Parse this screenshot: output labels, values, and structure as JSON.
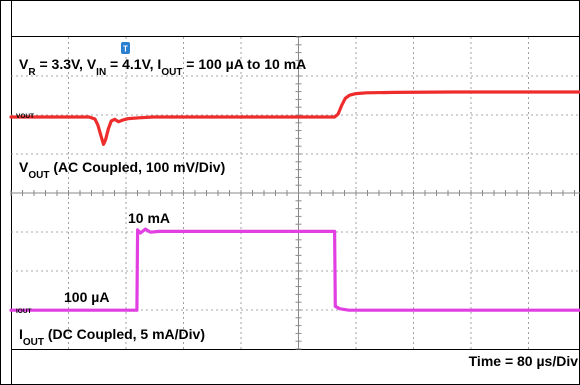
{
  "chart_data": {
    "type": "line",
    "header": {
      "text": "V_R = 3.3V, V_IN = 4.1V, I_OUT = 100 µA to 10 mA",
      "parts": [
        {
          "t": "V"
        },
        {
          "t": "R",
          "sub": true
        },
        {
          "t": " = 3.3V, V"
        },
        {
          "t": "IN",
          "sub": true
        },
        {
          "t": " = 4.1V, I"
        },
        {
          "t": "OUT",
          "sub": true
        },
        {
          "t": " = 100 µA to 10 mA"
        }
      ]
    },
    "vout_caption": {
      "text": "V_OUT (AC Coupled, 100 mV/Div)",
      "parts": [
        {
          "t": "V"
        },
        {
          "t": "OUT",
          "sub": true
        },
        {
          "t": " (AC Coupled, 100 mV/Div)"
        }
      ]
    },
    "iout_caption": {
      "text": "I_OUT (DC Coupled, 5 mA/Div)",
      "parts": [
        {
          "t": "I"
        },
        {
          "t": "OUT",
          "sub": true
        },
        {
          "t": " (DC Coupled, 5 mA/Div)"
        }
      ]
    },
    "vout_marker": "VOUT",
    "iout_marker": "IOUT",
    "time_label": "Time = 80 µs/Div",
    "iout_high_label": "10 mA",
    "iout_low_label": "100 µA",
    "colors": {
      "vout": "#ee2c2c",
      "iout": "#e23fe2",
      "grid": "#8a8a8a",
      "frame": "#000000",
      "trigger": "#2a7fd0"
    },
    "x_div_us": 80,
    "x_range_us": [
      0,
      800
    ],
    "vout_div_mV": 100,
    "iout_div_mA": 5,
    "series": [
      {
        "name": "VOUT",
        "unit": "mV (AC coupled)",
        "points": [
          [
            0,
            0
          ],
          [
            110,
            0
          ],
          [
            118,
            -5
          ],
          [
            122,
            -20
          ],
          [
            126,
            -45
          ],
          [
            130,
            -70
          ],
          [
            133,
            -58
          ],
          [
            137,
            -30
          ],
          [
            141,
            -10
          ],
          [
            146,
            -6
          ],
          [
            151,
            -12
          ],
          [
            157,
            -8
          ],
          [
            165,
            -4
          ],
          [
            180,
            -2
          ],
          [
            200,
            0
          ],
          [
            300,
            0
          ],
          [
            420,
            0
          ],
          [
            455,
            0
          ],
          [
            460,
            8
          ],
          [
            465,
            30
          ],
          [
            470,
            48
          ],
          [
            476,
            56
          ],
          [
            485,
            60
          ],
          [
            500,
            62
          ],
          [
            540,
            63
          ],
          [
            620,
            64
          ],
          [
            720,
            64
          ],
          [
            800,
            64
          ]
        ]
      },
      {
        "name": "IOUT",
        "unit": "mA",
        "points": [
          [
            0,
            0.1
          ],
          [
            177,
            0.1
          ],
          [
            178,
            10.4
          ],
          [
            182,
            10.0
          ],
          [
            189,
            10.5
          ],
          [
            196,
            10.1
          ],
          [
            208,
            10.2
          ],
          [
            300,
            10.2
          ],
          [
            455,
            10.2
          ],
          [
            456,
            0.6
          ],
          [
            462,
            0.3
          ],
          [
            475,
            0.1
          ],
          [
            800,
            0.1
          ]
        ]
      }
    ]
  }
}
